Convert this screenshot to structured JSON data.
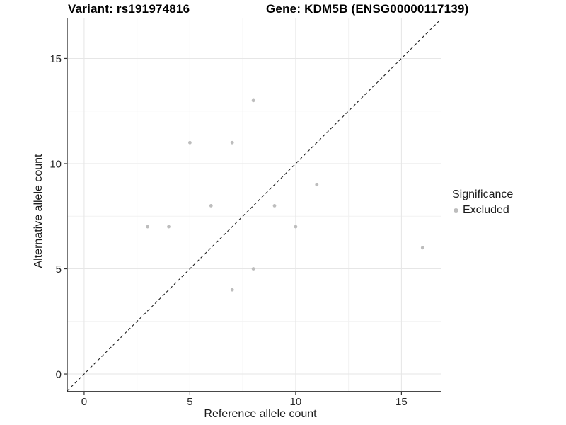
{
  "header": {
    "variant_title": "Variant: rs191974816",
    "gene_title": "Gene: KDM5B (ENSG00000117139)"
  },
  "axes": {
    "x_label": "Reference allele count",
    "y_label": "Alternative allele count"
  },
  "legend": {
    "title": "Significance",
    "items": [
      {
        "label": "Excluded",
        "color": "#bdbdbd"
      }
    ]
  },
  "colors": {
    "background": "#ffffff",
    "grid_major": "#e6e6e6",
    "grid_minor": "#f2f2f2",
    "axis_line": "#2e2e2e",
    "tick_mark": "#333333",
    "tick_text": "#262626",
    "dashed_line": "#1f1f1f",
    "point": "#bdbdbd"
  },
  "chart_data": {
    "type": "scatter",
    "title": "Variant: rs191974816 | Gene: KDM5B (ENSG00000117139)",
    "xlabel": "Reference allele count",
    "ylabel": "Alternative allele count",
    "xlim": [
      -0.8,
      16.86
    ],
    "ylim": [
      -0.84,
      16.9
    ],
    "x_ticks": [
      0,
      5,
      10,
      15
    ],
    "y_ticks": [
      0,
      5,
      10,
      15
    ],
    "minor_x_ticks": [
      2.5,
      7.5,
      12.5
    ],
    "minor_y_ticks": [
      2.5,
      7.5,
      12.5
    ],
    "grid": true,
    "legend_position": "right",
    "series": [
      {
        "name": "Excluded",
        "color": "#bdbdbd",
        "points": [
          [
            3,
            7
          ],
          [
            4,
            7
          ],
          [
            5,
            11
          ],
          [
            6,
            8
          ],
          [
            7,
            4
          ],
          [
            7,
            11
          ],
          [
            8,
            5
          ],
          [
            8,
            13
          ],
          [
            9,
            8
          ],
          [
            10,
            7
          ],
          [
            11,
            9
          ],
          [
            16,
            6
          ]
        ]
      }
    ],
    "reference_line": {
      "type": "identity",
      "slope": 1,
      "intercept": 0,
      "style": "dashed"
    }
  }
}
